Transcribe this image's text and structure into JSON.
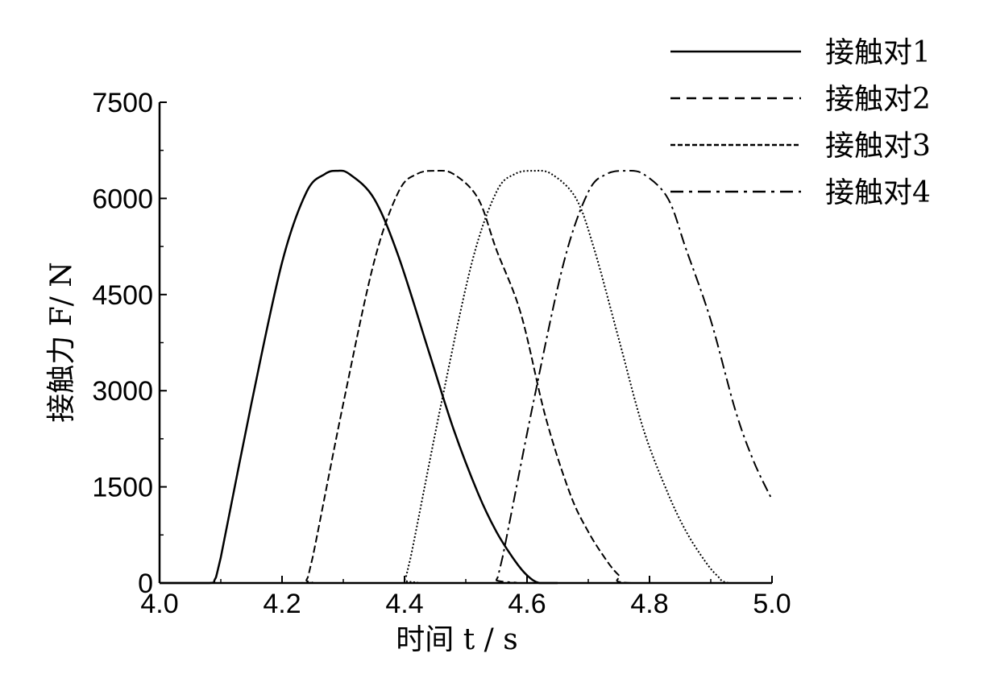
{
  "chart_data": {
    "type": "line",
    "xlabel": "时间 t / s",
    "ylabel": "接触力 F/ N",
    "xlim": [
      4.0,
      5.0
    ],
    "ylim": [
      0,
      7500
    ],
    "x_ticks": [
      "4.0",
      "4.2",
      "4.4",
      "4.6",
      "4.8",
      "5.0"
    ],
    "y_ticks": [
      "0",
      "1500",
      "3000",
      "4500",
      "6000",
      "7500"
    ],
    "grid": false,
    "legend_position": "top-right",
    "series": [
      {
        "name": "接触对1",
        "line_style": "solid",
        "x": [
          4.0,
          4.08,
          4.09,
          4.1,
          4.15,
          4.2,
          4.24,
          4.27,
          4.29,
          4.31,
          4.35,
          4.39,
          4.44,
          4.48,
          4.52,
          4.55,
          4.58,
          4.6,
          4.62,
          4.65
        ],
        "y": [
          0,
          0,
          50,
          400,
          2800,
          5000,
          6100,
          6380,
          6430,
          6380,
          6000,
          5100,
          3600,
          2400,
          1400,
          800,
          350,
          120,
          0,
          0
        ]
      },
      {
        "name": "接触对2",
        "line_style": "dashed",
        "x": [
          4.0,
          4.23,
          4.24,
          4.25,
          4.3,
          4.35,
          4.39,
          4.42,
          4.45,
          4.48,
          4.52,
          4.55,
          4.59,
          4.63,
          4.67,
          4.7,
          4.73,
          4.75,
          4.77,
          5.0
        ],
        "y": [
          0,
          0,
          50,
          400,
          2800,
          5000,
          6100,
          6380,
          6430,
          6380,
          6000,
          5200,
          4200,
          2600,
          1400,
          800,
          350,
          120,
          0,
          0
        ]
      },
      {
        "name": "接触对3",
        "line_style": "dotted",
        "x": [
          4.0,
          4.39,
          4.4,
          4.41,
          4.46,
          4.51,
          4.55,
          4.58,
          4.61,
          4.64,
          4.68,
          4.71,
          4.75,
          4.79,
          4.83,
          4.86,
          4.89,
          4.91,
          4.93,
          5.0
        ],
        "y": [
          0,
          0,
          50,
          400,
          2800,
          5000,
          6100,
          6380,
          6430,
          6380,
          6000,
          5200,
          3800,
          2400,
          1400,
          800,
          350,
          120,
          0,
          0
        ]
      },
      {
        "name": "接触对4",
        "line_style": "dash-dot",
        "x": [
          4.0,
          4.54,
          4.55,
          4.56,
          4.61,
          4.66,
          4.7,
          4.73,
          4.76,
          4.79,
          4.83,
          4.86,
          4.9,
          4.94,
          4.97,
          5.0
        ],
        "y": [
          0,
          0,
          50,
          400,
          2800,
          5000,
          6100,
          6380,
          6430,
          6380,
          6000,
          5200,
          4100,
          2700,
          1900,
          1300
        ]
      }
    ]
  }
}
